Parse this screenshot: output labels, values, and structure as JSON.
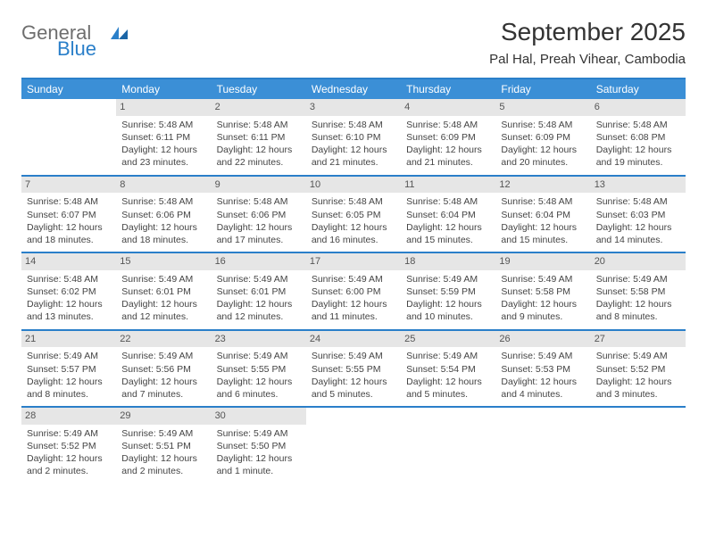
{
  "logo": {
    "word1": "General",
    "word2": "Blue"
  },
  "title": "September 2025",
  "location": "Pal Hal, Preah Vihear, Cambodia",
  "colors": {
    "header_bar": "#3b8fd6",
    "border": "#2a7fc9",
    "daynum_bg": "#e6e6e6",
    "text": "#333333",
    "logo_gray": "#6e6e6e",
    "logo_blue": "#2a7fc9"
  },
  "daysOfWeek": [
    "Sunday",
    "Monday",
    "Tuesday",
    "Wednesday",
    "Thursday",
    "Friday",
    "Saturday"
  ],
  "weeks": [
    [
      null,
      {
        "n": "1",
        "sr": "Sunrise: 5:48 AM",
        "ss": "Sunset: 6:11 PM",
        "dl": "Daylight: 12 hours and 23 minutes."
      },
      {
        "n": "2",
        "sr": "Sunrise: 5:48 AM",
        "ss": "Sunset: 6:11 PM",
        "dl": "Daylight: 12 hours and 22 minutes."
      },
      {
        "n": "3",
        "sr": "Sunrise: 5:48 AM",
        "ss": "Sunset: 6:10 PM",
        "dl": "Daylight: 12 hours and 21 minutes."
      },
      {
        "n": "4",
        "sr": "Sunrise: 5:48 AM",
        "ss": "Sunset: 6:09 PM",
        "dl": "Daylight: 12 hours and 21 minutes."
      },
      {
        "n": "5",
        "sr": "Sunrise: 5:48 AM",
        "ss": "Sunset: 6:09 PM",
        "dl": "Daylight: 12 hours and 20 minutes."
      },
      {
        "n": "6",
        "sr": "Sunrise: 5:48 AM",
        "ss": "Sunset: 6:08 PM",
        "dl": "Daylight: 12 hours and 19 minutes."
      }
    ],
    [
      {
        "n": "7",
        "sr": "Sunrise: 5:48 AM",
        "ss": "Sunset: 6:07 PM",
        "dl": "Daylight: 12 hours and 18 minutes."
      },
      {
        "n": "8",
        "sr": "Sunrise: 5:48 AM",
        "ss": "Sunset: 6:06 PM",
        "dl": "Daylight: 12 hours and 18 minutes."
      },
      {
        "n": "9",
        "sr": "Sunrise: 5:48 AM",
        "ss": "Sunset: 6:06 PM",
        "dl": "Daylight: 12 hours and 17 minutes."
      },
      {
        "n": "10",
        "sr": "Sunrise: 5:48 AM",
        "ss": "Sunset: 6:05 PM",
        "dl": "Daylight: 12 hours and 16 minutes."
      },
      {
        "n": "11",
        "sr": "Sunrise: 5:48 AM",
        "ss": "Sunset: 6:04 PM",
        "dl": "Daylight: 12 hours and 15 minutes."
      },
      {
        "n": "12",
        "sr": "Sunrise: 5:48 AM",
        "ss": "Sunset: 6:04 PM",
        "dl": "Daylight: 12 hours and 15 minutes."
      },
      {
        "n": "13",
        "sr": "Sunrise: 5:48 AM",
        "ss": "Sunset: 6:03 PM",
        "dl": "Daylight: 12 hours and 14 minutes."
      }
    ],
    [
      {
        "n": "14",
        "sr": "Sunrise: 5:48 AM",
        "ss": "Sunset: 6:02 PM",
        "dl": "Daylight: 12 hours and 13 minutes."
      },
      {
        "n": "15",
        "sr": "Sunrise: 5:49 AM",
        "ss": "Sunset: 6:01 PM",
        "dl": "Daylight: 12 hours and 12 minutes."
      },
      {
        "n": "16",
        "sr": "Sunrise: 5:49 AM",
        "ss": "Sunset: 6:01 PM",
        "dl": "Daylight: 12 hours and 12 minutes."
      },
      {
        "n": "17",
        "sr": "Sunrise: 5:49 AM",
        "ss": "Sunset: 6:00 PM",
        "dl": "Daylight: 12 hours and 11 minutes."
      },
      {
        "n": "18",
        "sr": "Sunrise: 5:49 AM",
        "ss": "Sunset: 5:59 PM",
        "dl": "Daylight: 12 hours and 10 minutes."
      },
      {
        "n": "19",
        "sr": "Sunrise: 5:49 AM",
        "ss": "Sunset: 5:58 PM",
        "dl": "Daylight: 12 hours and 9 minutes."
      },
      {
        "n": "20",
        "sr": "Sunrise: 5:49 AM",
        "ss": "Sunset: 5:58 PM",
        "dl": "Daylight: 12 hours and 8 minutes."
      }
    ],
    [
      {
        "n": "21",
        "sr": "Sunrise: 5:49 AM",
        "ss": "Sunset: 5:57 PM",
        "dl": "Daylight: 12 hours and 8 minutes."
      },
      {
        "n": "22",
        "sr": "Sunrise: 5:49 AM",
        "ss": "Sunset: 5:56 PM",
        "dl": "Daylight: 12 hours and 7 minutes."
      },
      {
        "n": "23",
        "sr": "Sunrise: 5:49 AM",
        "ss": "Sunset: 5:55 PM",
        "dl": "Daylight: 12 hours and 6 minutes."
      },
      {
        "n": "24",
        "sr": "Sunrise: 5:49 AM",
        "ss": "Sunset: 5:55 PM",
        "dl": "Daylight: 12 hours and 5 minutes."
      },
      {
        "n": "25",
        "sr": "Sunrise: 5:49 AM",
        "ss": "Sunset: 5:54 PM",
        "dl": "Daylight: 12 hours and 5 minutes."
      },
      {
        "n": "26",
        "sr": "Sunrise: 5:49 AM",
        "ss": "Sunset: 5:53 PM",
        "dl": "Daylight: 12 hours and 4 minutes."
      },
      {
        "n": "27",
        "sr": "Sunrise: 5:49 AM",
        "ss": "Sunset: 5:52 PM",
        "dl": "Daylight: 12 hours and 3 minutes."
      }
    ],
    [
      {
        "n": "28",
        "sr": "Sunrise: 5:49 AM",
        "ss": "Sunset: 5:52 PM",
        "dl": "Daylight: 12 hours and 2 minutes."
      },
      {
        "n": "29",
        "sr": "Sunrise: 5:49 AM",
        "ss": "Sunset: 5:51 PM",
        "dl": "Daylight: 12 hours and 2 minutes."
      },
      {
        "n": "30",
        "sr": "Sunrise: 5:49 AM",
        "ss": "Sunset: 5:50 PM",
        "dl": "Daylight: 12 hours and 1 minute."
      },
      null,
      null,
      null,
      null
    ]
  ]
}
